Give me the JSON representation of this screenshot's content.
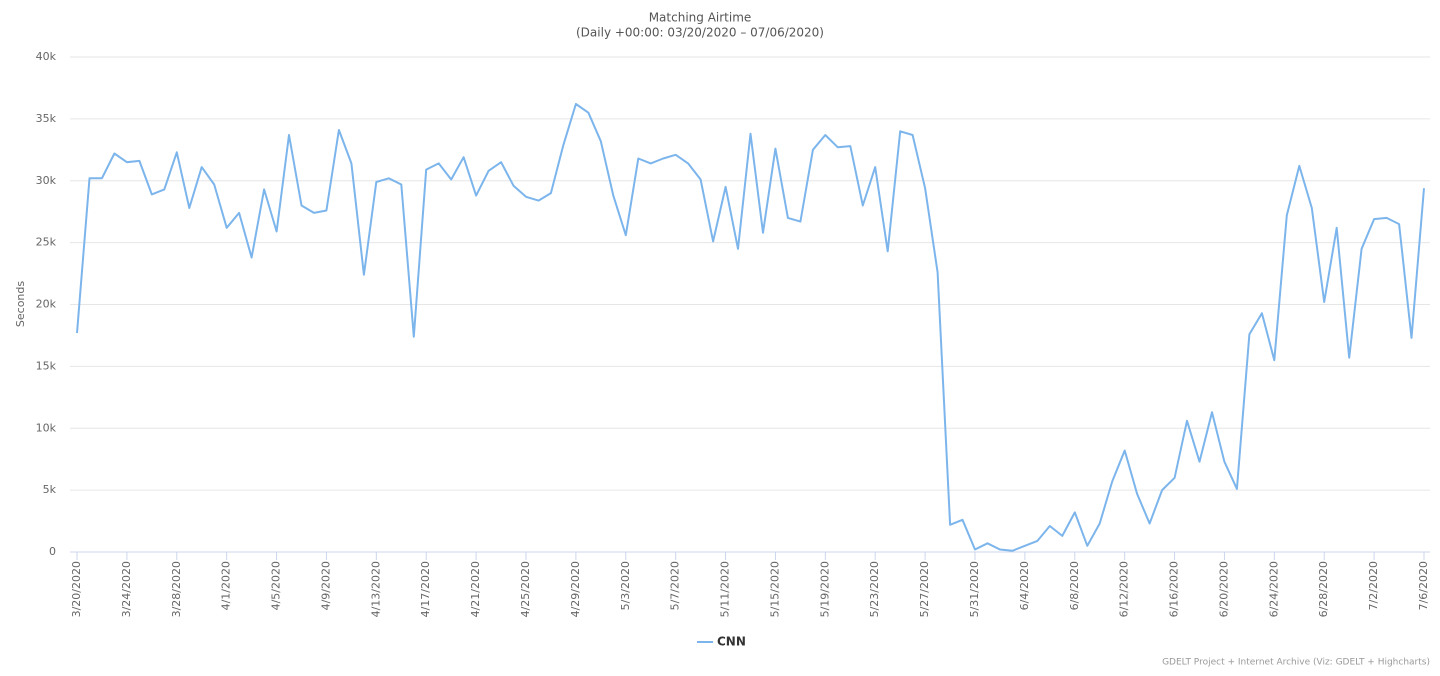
{
  "chart_data": {
    "type": "line",
    "title": "Matching Airtime",
    "subtitle": "(Daily +00:00: 03/20/2020 – 07/06/2020)",
    "y_label": "Seconds",
    "credit": "GDELT Project + Internet Archive (Viz: GDELT + Highcharts)",
    "categories": [
      "3/20/2020",
      null,
      null,
      null,
      "3/24/2020",
      null,
      null,
      null,
      "3/28/2020",
      null,
      null,
      null,
      "4/1/2020",
      null,
      null,
      null,
      "4/5/2020",
      null,
      null,
      null,
      "4/9/2020",
      null,
      null,
      null,
      "4/13/2020",
      null,
      null,
      null,
      "4/17/2020",
      null,
      null,
      null,
      "4/21/2020",
      null,
      null,
      null,
      "4/25/2020",
      null,
      null,
      null,
      "4/29/2020",
      null,
      null,
      null,
      "5/3/2020",
      null,
      null,
      null,
      "5/7/2020",
      null,
      null,
      null,
      "5/11/2020",
      null,
      null,
      null,
      "5/15/2020",
      null,
      null,
      null,
      "5/19/2020",
      null,
      null,
      null,
      "5/23/2020",
      null,
      null,
      null,
      "5/27/2020",
      null,
      null,
      null,
      "5/31/2020",
      null,
      null,
      null,
      "6/4/2020",
      null,
      null,
      null,
      "6/8/2020",
      null,
      null,
      null,
      "6/12/2020",
      null,
      null,
      null,
      "6/16/2020",
      null,
      null,
      null,
      "6/20/2020",
      null,
      null,
      null,
      "6/24/2020",
      null,
      null,
      null,
      "6/28/2020",
      null,
      null,
      null,
      "7/2/2020",
      null,
      null,
      null,
      "7/6/2020"
    ],
    "series": [
      {
        "name": "CNN",
        "color": "#7cb5ec",
        "values": [
          17700,
          30200,
          30200,
          32200,
          31500,
          31600,
          28900,
          29300,
          32300,
          27800,
          31100,
          29700,
          26200,
          27400,
          23800,
          29300,
          25900,
          33700,
          28000,
          27400,
          27600,
          34100,
          31400,
          22400,
          29900,
          30200,
          29700,
          17400,
          30900,
          31400,
          30100,
          31900,
          28800,
          30800,
          31500,
          29600,
          28700,
          28400,
          29000,
          32900,
          36200,
          35500,
          33200,
          28800,
          25600,
          31800,
          31400,
          31800,
          32100,
          31400,
          30100,
          25100,
          29500,
          24500,
          33800,
          25800,
          32600,
          27000,
          26700,
          32500,
          33700,
          32700,
          32800,
          28000,
          31100,
          24300,
          34000,
          33700,
          29400,
          22600,
          2200,
          2600,
          200,
          700,
          200,
          100,
          500,
          900,
          2100,
          1300,
          3200,
          500,
          2300,
          5700,
          8200,
          4700,
          2300,
          5000,
          6000,
          10600,
          7300,
          11300,
          7300,
          5100,
          17600,
          19300,
          15500,
          27200,
          31200,
          27800,
          20200,
          26200,
          15700,
          24500,
          26900,
          27000,
          26500,
          17300,
          29400
        ]
      }
    ],
    "ylim": [
      0,
      40000
    ],
    "yticks": [
      0,
      {
        "value": 5000,
        "label": "5k"
      },
      {
        "value": 10000,
        "label": "10k"
      },
      {
        "value": 15000,
        "label": "15k"
      },
      {
        "value": 20000,
        "label": "20k"
      },
      {
        "value": 25000,
        "label": "25k"
      },
      {
        "value": 30000,
        "label": "30k"
      },
      {
        "value": 35000,
        "label": "35k"
      },
      {
        "value": 40000,
        "label": "40k"
      }
    ],
    "grid": true
  }
}
